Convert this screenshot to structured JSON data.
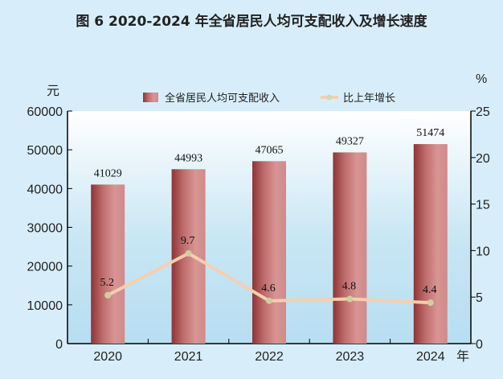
{
  "title": "图 6  2020-2024 年全省居民人均可支配收入及增长速度",
  "chart_data": {
    "type": "bar+line",
    "title": "图 6  2020-2024 年全省居民人均可支配收入及增长速度",
    "categories": [
      "2020",
      "2021",
      "2022",
      "2023",
      "2024"
    ],
    "xlabel": "年",
    "ylabel_left": "元",
    "ylabel_right": "%",
    "ylim_left": [
      0,
      60000
    ],
    "ylim_right": [
      0,
      25
    ],
    "yticks_left": [
      0,
      10000,
      20000,
      30000,
      40000,
      50000,
      60000
    ],
    "yticks_right": [
      0,
      5,
      10,
      15,
      20,
      25
    ],
    "legend_position": "top",
    "series": [
      {
        "name": "全省居民人均可支配收入",
        "type": "bar",
        "axis": "left",
        "values": [
          41029,
          44993,
          47065,
          49327,
          51474
        ],
        "color": "#a84a4c"
      },
      {
        "name": "比上年增长",
        "type": "line",
        "axis": "right",
        "values": [
          5.2,
          9.7,
          4.6,
          4.8,
          4.4
        ],
        "color": "#f6cfae"
      }
    ]
  }
}
